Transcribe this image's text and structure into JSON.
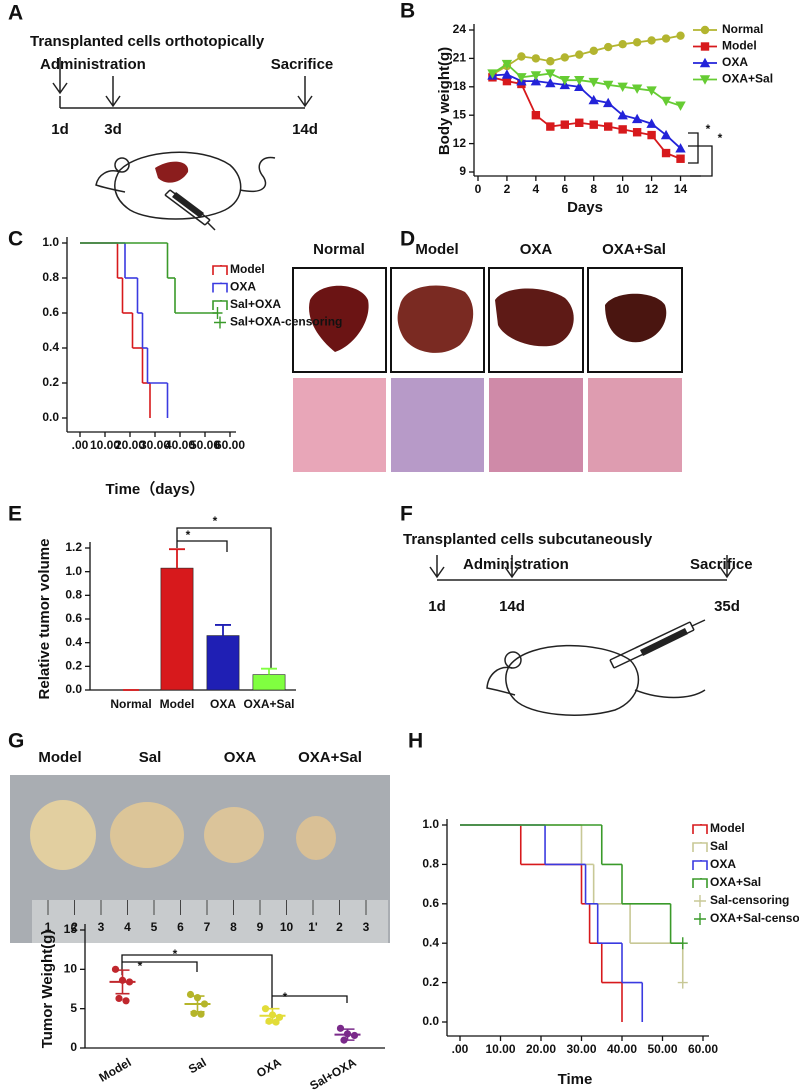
{
  "panel_labels": [
    "A",
    "B",
    "C",
    "D",
    "E",
    "F",
    "G",
    "H"
  ],
  "timeline_a": {
    "title": "Transplanted cells orthotopically",
    "administration": "Administration",
    "sacrifice": "Sacrifice",
    "days": [
      "1d",
      "3d",
      "14d"
    ]
  },
  "liver_photos": {
    "groups": [
      "Normal",
      "Model",
      "OXA",
      "OXA+Sal"
    ]
  },
  "timeline_f": {
    "title": "Transplanted cells subcutaneously",
    "administration": "Administration",
    "sacrifice": "Sacrifice",
    "days": [
      "1d",
      "14d",
      "35d"
    ]
  },
  "tumor_photo": {
    "groups": [
      "Model",
      "Sal",
      "OXA",
      "OXA+Sal"
    ],
    "ruler": [
      "1",
      "2",
      "3",
      "4",
      "5",
      "6",
      "7",
      "8",
      "9",
      "10",
      "1'",
      "2",
      "3"
    ]
  },
  "chart_data": [
    {
      "type": "line",
      "y_label": "Body weight(g)",
      "x_label": "Days",
      "x": [
        1,
        2,
        3,
        4,
        5,
        6,
        7,
        8,
        9,
        10,
        11,
        12,
        13,
        14
      ],
      "xlim": [
        0,
        15
      ],
      "xticks": [
        0,
        2,
        4,
        6,
        8,
        10,
        12,
        14
      ],
      "ylim": [
        9,
        24
      ],
      "yticks": [
        9,
        12,
        15,
        18,
        21,
        24
      ],
      "annotations": [
        "*",
        "*"
      ],
      "series": [
        {
          "name": "Normal",
          "color": "#b3b52f",
          "marker": "circle",
          "values": [
            19.3,
            20.2,
            21.2,
            21.0,
            20.7,
            21.1,
            21.4,
            21.8,
            22.2,
            22.5,
            22.7,
            22.9,
            23.1,
            23.4
          ]
        },
        {
          "name": "Model",
          "color": "#d7191c",
          "marker": "square",
          "values": [
            19.0,
            18.6,
            18.3,
            15.0,
            13.8,
            14.0,
            14.2,
            14.0,
            13.8,
            13.5,
            13.2,
            12.9,
            11.0,
            10.4
          ]
        },
        {
          "name": "OXA",
          "color": "#2323d9",
          "marker": "triangle",
          "values": [
            19.2,
            19.3,
            18.6,
            18.6,
            18.4,
            18.2,
            18.0,
            16.6,
            16.3,
            15.0,
            14.6,
            14.1,
            12.9,
            11.5
          ]
        },
        {
          "name": "OXA+Sal",
          "color": "#66cc33",
          "marker": "triangle-down",
          "values": [
            19.4,
            20.4,
            19.0,
            19.2,
            19.4,
            18.7,
            18.7,
            18.5,
            18.2,
            18.0,
            17.8,
            17.6,
            16.5,
            16.0
          ]
        }
      ]
    },
    {
      "type": "survival",
      "x_label": "Time（days）",
      "xlim": [
        0,
        60
      ],
      "xticks": [
        {
          "value": 0,
          "label": ".00"
        },
        {
          "value": 10,
          "label": "10.00"
        },
        {
          "value": 20,
          "label": "20.00"
        },
        {
          "value": 30,
          "label": "30.00"
        },
        {
          "value": 40,
          "label": "40.00"
        },
        {
          "value": 50,
          "label": "50.00"
        },
        {
          "value": 60,
          "label": "60.00"
        }
      ],
      "ylim": [
        0,
        1
      ],
      "yticks": [
        {
          "value": 0,
          "label": "0.0"
        },
        0.2,
        0.4,
        0.6,
        0.8,
        {
          "value": 1,
          "label": "1.0"
        }
      ],
      "series": [
        {
          "name": "Model",
          "color": "#d7191c",
          "style": "step",
          "x": [
            0,
            15,
            17,
            21,
            25,
            28
          ],
          "values": [
            1,
            0.8,
            0.6,
            0.4,
            0.2,
            0
          ]
        },
        {
          "name": "OXA",
          "color": "#3a3ae0",
          "style": "step",
          "x": [
            0,
            18,
            23,
            25,
            27,
            35
          ],
          "values": [
            1,
            0.8,
            0.6,
            0.4,
            0.2,
            0
          ]
        },
        {
          "name": "Sal+OXA",
          "color": "#3a9a2a",
          "style": "step",
          "x": [
            0,
            35,
            38,
            55
          ],
          "values": [
            1,
            0.8,
            0.6,
            0.6
          ]
        },
        {
          "name": "Sal+OXA-censoring",
          "color": "#3a9a2a",
          "style": "censor",
          "x": [
            55
          ],
          "values": [
            0.6
          ]
        }
      ]
    },
    {
      "type": "bar",
      "y_label": "Relative tumor volume",
      "categories": [
        "Normal",
        "Model",
        "OXA",
        "OXA+Sal"
      ],
      "values": [
        0,
        1.03,
        0.46,
        0.13
      ],
      "errors": [
        0,
        0.16,
        0.09,
        0.05
      ],
      "colors": [
        "#d7191c",
        "#d7191c",
        "#1f1fb4",
        "#80ff40"
      ],
      "ylim": [
        0,
        1.2
      ],
      "yticks": [
        {
          "value": 0,
          "label": "0.0"
        },
        0.2,
        0.4,
        0.6,
        0.8,
        {
          "value": 1,
          "label": "1.0"
        },
        1.2
      ],
      "annotations": [
        "*",
        "*"
      ]
    },
    {
      "type": "dot",
      "y_label": "Tumor Weight(g)",
      "categories": [
        "Model",
        "Sal",
        "OXA",
        "Sal+OXA"
      ],
      "points": [
        [
          10.0,
          8.6,
          8.4,
          6.3,
          6.0
        ],
        [
          6.8,
          6.4,
          5.6,
          4.4,
          4.3
        ],
        [
          5.0,
          4.2,
          3.9,
          3.4,
          3.3
        ],
        [
          2.5,
          1.8,
          1.6,
          1.0
        ]
      ],
      "means": [
        8.4,
        5.6,
        4.1,
        1.7
      ],
      "errors": [
        1.5,
        1.0,
        0.9,
        0.7
      ],
      "colors": [
        "#c0272d",
        "#b5b52a",
        "#e2dc38",
        "#7a2a8a"
      ],
      "ylim": [
        0,
        15
      ],
      "yticks": [
        0,
        5,
        10,
        15
      ],
      "annotations": [
        "*",
        "*",
        "*"
      ]
    },
    {
      "type": "survival",
      "x_label": "Time",
      "xlim": [
        0,
        60
      ],
      "xticks": [
        {
          "value": 0,
          "label": ".00"
        },
        {
          "value": 10,
          "label": "10.00"
        },
        {
          "value": 20,
          "label": "20.00"
        },
        {
          "value": 30,
          "label": "30.00"
        },
        {
          "value": 40,
          "label": "40.00"
        },
        {
          "value": 50,
          "label": "50.00"
        },
        {
          "value": 60,
          "label": "60.00"
        }
      ],
      "ylim": [
        0,
        1
      ],
      "yticks": [
        {
          "value": 0,
          "label": "0.0"
        },
        0.2,
        0.4,
        0.6,
        0.8,
        {
          "value": 1,
          "label": "1.0"
        }
      ],
      "series": [
        {
          "name": "Model",
          "color": "#d7191c",
          "style": "step",
          "x": [
            0,
            15,
            30,
            32,
            35,
            40
          ],
          "values": [
            1,
            0.8,
            0.6,
            0.4,
            0.2,
            0
          ]
        },
        {
          "name": "Sal",
          "color": "#c8c896",
          "style": "step",
          "x": [
            0,
            30,
            33,
            42,
            55
          ],
          "values": [
            1,
            0.8,
            0.6,
            0.4,
            0.2
          ]
        },
        {
          "name": "OXA",
          "color": "#3a3ae0",
          "style": "step",
          "x": [
            0,
            21,
            31,
            34,
            40,
            45
          ],
          "values": [
            1,
            0.8,
            0.6,
            0.4,
            0.2,
            0
          ]
        },
        {
          "name": "OXA+Sal",
          "color": "#3a9a2a",
          "style": "step",
          "x": [
            0,
            35,
            40,
            52,
            55
          ],
          "values": [
            1,
            0.8,
            0.6,
            0.4,
            0.4
          ]
        },
        {
          "name": "Sal-censoring",
          "color": "#c8c896",
          "style": "censor",
          "x": [
            55
          ],
          "values": [
            0.2
          ]
        },
        {
          "name": "OXA+Sal-censoring",
          "color": "#3a9a2a",
          "style": "censor",
          "x": [
            55
          ],
          "values": [
            0.4
          ]
        }
      ]
    }
  ]
}
